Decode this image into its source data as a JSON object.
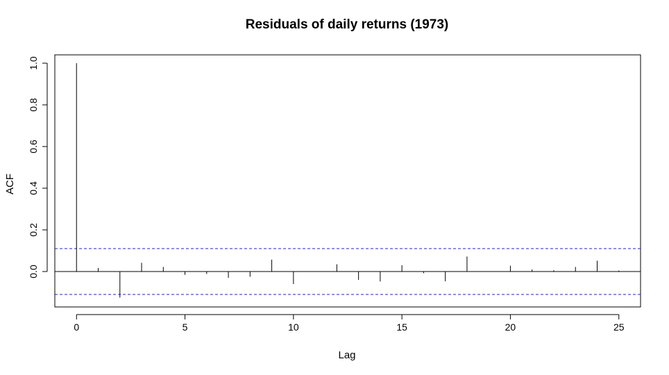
{
  "chart_data": {
    "type": "bar",
    "title": "Residuals of daily returns (1973)",
    "xlabel": "Lag",
    "ylabel": "ACF",
    "x": [
      0,
      1,
      2,
      3,
      4,
      5,
      6,
      7,
      8,
      9,
      10,
      11,
      12,
      13,
      14,
      15,
      16,
      17,
      18,
      19,
      20,
      21,
      22,
      23,
      24,
      25
    ],
    "values": [
      1.0,
      0.017,
      -0.125,
      0.042,
      0.022,
      -0.016,
      -0.012,
      -0.03,
      -0.025,
      0.057,
      -0.06,
      0.0,
      0.035,
      -0.04,
      -0.048,
      0.03,
      -0.008,
      -0.047,
      0.072,
      0.0,
      0.028,
      0.01,
      0.006,
      0.022,
      0.052,
      0.005
    ],
    "xlim": [
      -1,
      26
    ],
    "ylim": [
      -0.17,
      1.04
    ],
    "x_ticks": [
      "0",
      "5",
      "10",
      "15",
      "20",
      "25"
    ],
    "y_ticks": [
      "0.0",
      "0.2",
      "0.4",
      "0.6",
      "0.8",
      "1.0"
    ],
    "confidence_bounds": [
      0.11,
      -0.11
    ],
    "grid": false,
    "colors": {
      "bars": "#000000",
      "zero_line": "#000000",
      "confidence_lines": "#2020c8",
      "frame": "#000000"
    }
  }
}
